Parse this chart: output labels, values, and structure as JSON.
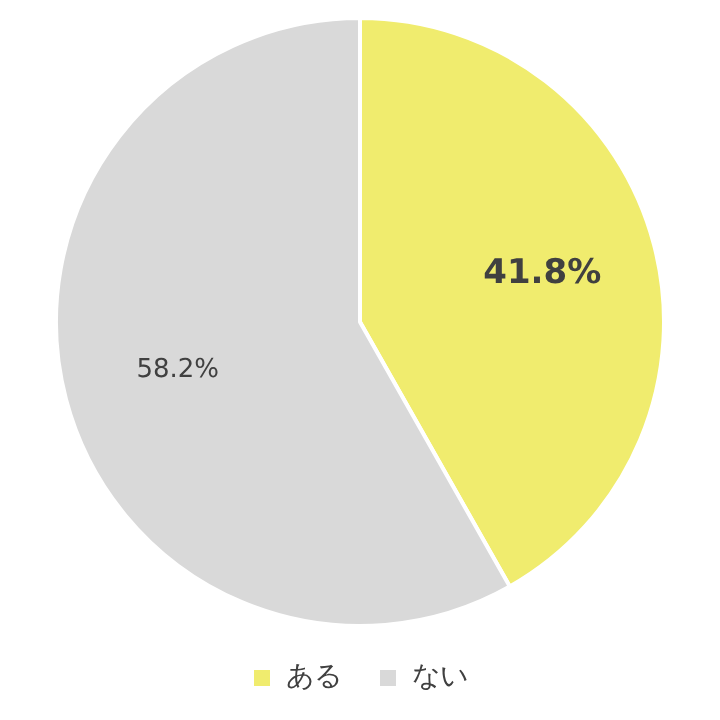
{
  "chart_data": {
    "type": "pie",
    "categories": [
      "ある",
      "ない"
    ],
    "values": [
      41.8,
      58.2
    ],
    "colors": [
      "#f0ec6e",
      "#d9d9d9"
    ],
    "value_labels": [
      "41.8%",
      "58.2%"
    ],
    "legend": "bottom"
  }
}
